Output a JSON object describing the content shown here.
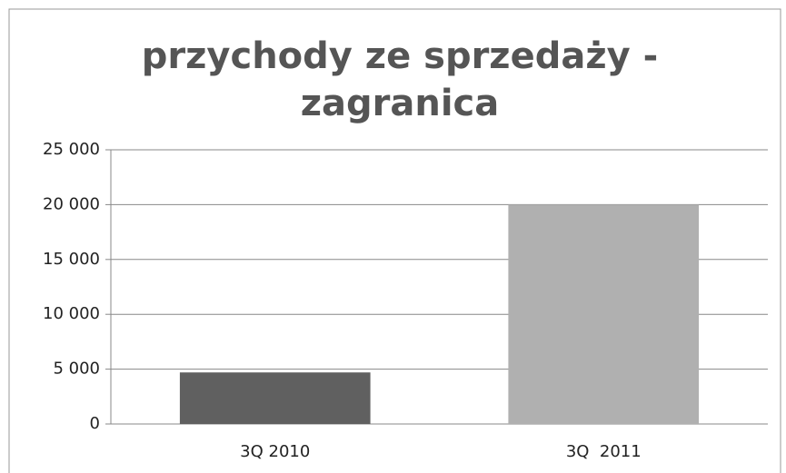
{
  "chart_data": {
    "type": "bar",
    "title": "przychody ze sprzedaży - zagranica",
    "categories": [
      "3Q 2010",
      "3Q  2011"
    ],
    "values": [
      4700,
      20000
    ],
    "colors": [
      "#606060",
      "#b0b0b0"
    ],
    "ylim": [
      0,
      25000
    ],
    "yticks": [
      0,
      {
        "value": 5000,
        "label": "5 000"
      },
      {
        "value": 10000,
        "label": "10 000"
      },
      {
        "value": 15000,
        "label": "15 000"
      },
      {
        "value": 20000,
        "label": "20 000"
      },
      {
        "value": 25000,
        "label": "25 000"
      }
    ],
    "grid": true
  }
}
